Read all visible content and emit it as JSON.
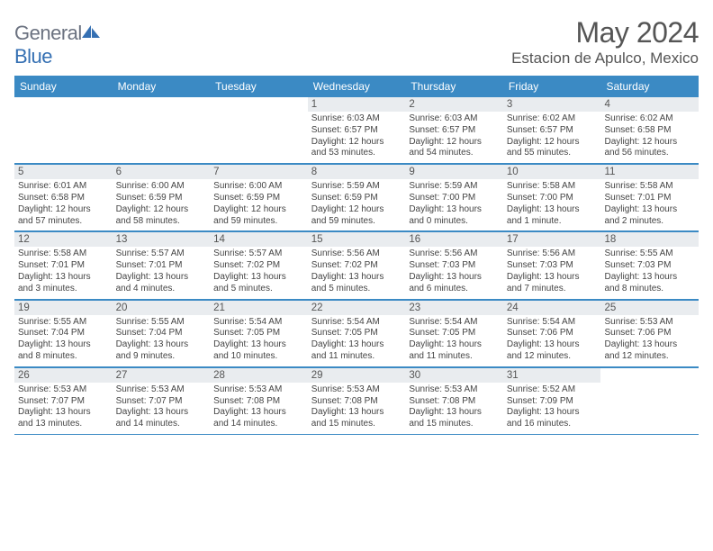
{
  "brand": {
    "name_part1": "General",
    "name_part2": "Blue"
  },
  "title": "May 2024",
  "location": "Estacion de Apulco, Mexico",
  "colors": {
    "header_bg": "#3b8ac4",
    "daynum_bg": "#e9ecef",
    "divider": "#3b8ac4",
    "text": "#444444",
    "title_text": "#555555",
    "logo_gray": "#6b7280",
    "logo_blue": "#3570b3"
  },
  "day_labels": [
    "Sunday",
    "Monday",
    "Tuesday",
    "Wednesday",
    "Thursday",
    "Friday",
    "Saturday"
  ],
  "weeks": [
    [
      {
        "n": "",
        "empty": true
      },
      {
        "n": "",
        "empty": true
      },
      {
        "n": "",
        "empty": true
      },
      {
        "n": "1",
        "sr": "Sunrise: 6:03 AM",
        "ss": "Sunset: 6:57 PM",
        "d1": "Daylight: 12 hours",
        "d2": "and 53 minutes."
      },
      {
        "n": "2",
        "sr": "Sunrise: 6:03 AM",
        "ss": "Sunset: 6:57 PM",
        "d1": "Daylight: 12 hours",
        "d2": "and 54 minutes."
      },
      {
        "n": "3",
        "sr": "Sunrise: 6:02 AM",
        "ss": "Sunset: 6:57 PM",
        "d1": "Daylight: 12 hours",
        "d2": "and 55 minutes."
      },
      {
        "n": "4",
        "sr": "Sunrise: 6:02 AM",
        "ss": "Sunset: 6:58 PM",
        "d1": "Daylight: 12 hours",
        "d2": "and 56 minutes."
      }
    ],
    [
      {
        "n": "5",
        "sr": "Sunrise: 6:01 AM",
        "ss": "Sunset: 6:58 PM",
        "d1": "Daylight: 12 hours",
        "d2": "and 57 minutes."
      },
      {
        "n": "6",
        "sr": "Sunrise: 6:00 AM",
        "ss": "Sunset: 6:59 PM",
        "d1": "Daylight: 12 hours",
        "d2": "and 58 minutes."
      },
      {
        "n": "7",
        "sr": "Sunrise: 6:00 AM",
        "ss": "Sunset: 6:59 PM",
        "d1": "Daylight: 12 hours",
        "d2": "and 59 minutes."
      },
      {
        "n": "8",
        "sr": "Sunrise: 5:59 AM",
        "ss": "Sunset: 6:59 PM",
        "d1": "Daylight: 12 hours",
        "d2": "and 59 minutes."
      },
      {
        "n": "9",
        "sr": "Sunrise: 5:59 AM",
        "ss": "Sunset: 7:00 PM",
        "d1": "Daylight: 13 hours",
        "d2": "and 0 minutes."
      },
      {
        "n": "10",
        "sr": "Sunrise: 5:58 AM",
        "ss": "Sunset: 7:00 PM",
        "d1": "Daylight: 13 hours",
        "d2": "and 1 minute."
      },
      {
        "n": "11",
        "sr": "Sunrise: 5:58 AM",
        "ss": "Sunset: 7:01 PM",
        "d1": "Daylight: 13 hours",
        "d2": "and 2 minutes."
      }
    ],
    [
      {
        "n": "12",
        "sr": "Sunrise: 5:58 AM",
        "ss": "Sunset: 7:01 PM",
        "d1": "Daylight: 13 hours",
        "d2": "and 3 minutes."
      },
      {
        "n": "13",
        "sr": "Sunrise: 5:57 AM",
        "ss": "Sunset: 7:01 PM",
        "d1": "Daylight: 13 hours",
        "d2": "and 4 minutes."
      },
      {
        "n": "14",
        "sr": "Sunrise: 5:57 AM",
        "ss": "Sunset: 7:02 PM",
        "d1": "Daylight: 13 hours",
        "d2": "and 5 minutes."
      },
      {
        "n": "15",
        "sr": "Sunrise: 5:56 AM",
        "ss": "Sunset: 7:02 PM",
        "d1": "Daylight: 13 hours",
        "d2": "and 5 minutes."
      },
      {
        "n": "16",
        "sr": "Sunrise: 5:56 AM",
        "ss": "Sunset: 7:03 PM",
        "d1": "Daylight: 13 hours",
        "d2": "and 6 minutes."
      },
      {
        "n": "17",
        "sr": "Sunrise: 5:56 AM",
        "ss": "Sunset: 7:03 PM",
        "d1": "Daylight: 13 hours",
        "d2": "and 7 minutes."
      },
      {
        "n": "18",
        "sr": "Sunrise: 5:55 AM",
        "ss": "Sunset: 7:03 PM",
        "d1": "Daylight: 13 hours",
        "d2": "and 8 minutes."
      }
    ],
    [
      {
        "n": "19",
        "sr": "Sunrise: 5:55 AM",
        "ss": "Sunset: 7:04 PM",
        "d1": "Daylight: 13 hours",
        "d2": "and 8 minutes."
      },
      {
        "n": "20",
        "sr": "Sunrise: 5:55 AM",
        "ss": "Sunset: 7:04 PM",
        "d1": "Daylight: 13 hours",
        "d2": "and 9 minutes."
      },
      {
        "n": "21",
        "sr": "Sunrise: 5:54 AM",
        "ss": "Sunset: 7:05 PM",
        "d1": "Daylight: 13 hours",
        "d2": "and 10 minutes."
      },
      {
        "n": "22",
        "sr": "Sunrise: 5:54 AM",
        "ss": "Sunset: 7:05 PM",
        "d1": "Daylight: 13 hours",
        "d2": "and 11 minutes."
      },
      {
        "n": "23",
        "sr": "Sunrise: 5:54 AM",
        "ss": "Sunset: 7:05 PM",
        "d1": "Daylight: 13 hours",
        "d2": "and 11 minutes."
      },
      {
        "n": "24",
        "sr": "Sunrise: 5:54 AM",
        "ss": "Sunset: 7:06 PM",
        "d1": "Daylight: 13 hours",
        "d2": "and 12 minutes."
      },
      {
        "n": "25",
        "sr": "Sunrise: 5:53 AM",
        "ss": "Sunset: 7:06 PM",
        "d1": "Daylight: 13 hours",
        "d2": "and 12 minutes."
      }
    ],
    [
      {
        "n": "26",
        "sr": "Sunrise: 5:53 AM",
        "ss": "Sunset: 7:07 PM",
        "d1": "Daylight: 13 hours",
        "d2": "and 13 minutes."
      },
      {
        "n": "27",
        "sr": "Sunrise: 5:53 AM",
        "ss": "Sunset: 7:07 PM",
        "d1": "Daylight: 13 hours",
        "d2": "and 14 minutes."
      },
      {
        "n": "28",
        "sr": "Sunrise: 5:53 AM",
        "ss": "Sunset: 7:08 PM",
        "d1": "Daylight: 13 hours",
        "d2": "and 14 minutes."
      },
      {
        "n": "29",
        "sr": "Sunrise: 5:53 AM",
        "ss": "Sunset: 7:08 PM",
        "d1": "Daylight: 13 hours",
        "d2": "and 15 minutes."
      },
      {
        "n": "30",
        "sr": "Sunrise: 5:53 AM",
        "ss": "Sunset: 7:08 PM",
        "d1": "Daylight: 13 hours",
        "d2": "and 15 minutes."
      },
      {
        "n": "31",
        "sr": "Sunrise: 5:52 AM",
        "ss": "Sunset: 7:09 PM",
        "d1": "Daylight: 13 hours",
        "d2": "and 16 minutes."
      },
      {
        "n": "",
        "empty": true
      }
    ]
  ]
}
